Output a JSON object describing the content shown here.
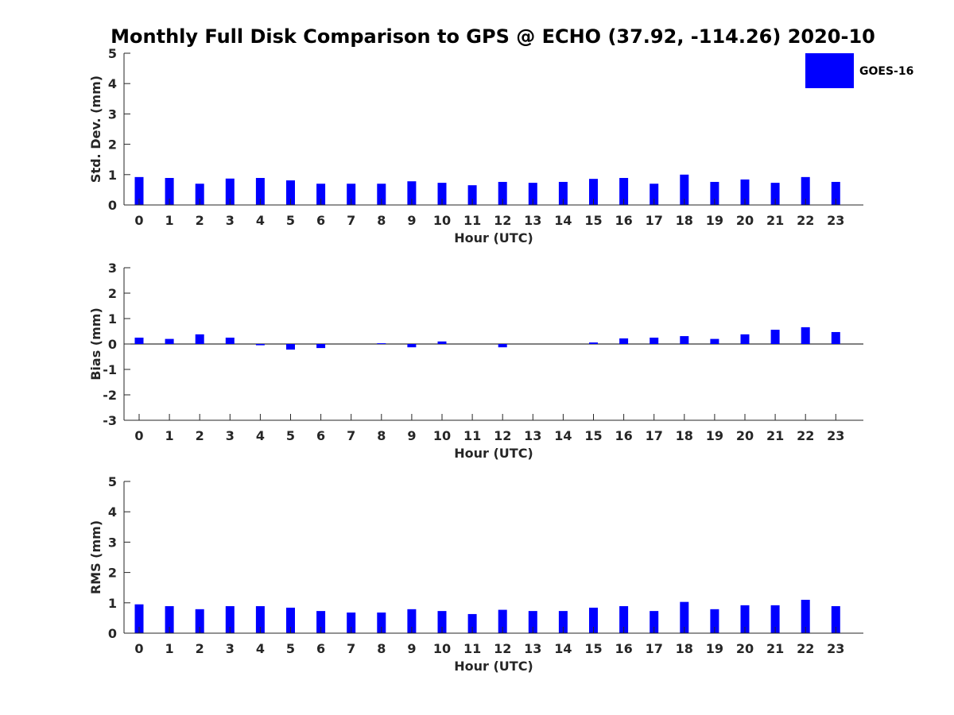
{
  "title": "Monthly Full Disk Comparison to GPS @ ECHO (37.92, -114.26) 2020-10",
  "legend": {
    "label": "GOES-16",
    "color": "#0000ff"
  },
  "chart_data": [
    {
      "type": "bar",
      "xlabel": "Hour (UTC)",
      "ylabel": "Std. Dev. (mm)",
      "ylim": [
        0,
        5
      ],
      "yticks": [
        0,
        1,
        2,
        3,
        4,
        5
      ],
      "categories": [
        "0",
        "1",
        "2",
        "3",
        "4",
        "5",
        "6",
        "7",
        "8",
        "9",
        "10",
        "11",
        "12",
        "13",
        "14",
        "15",
        "16",
        "17",
        "18",
        "19",
        "20",
        "21",
        "22",
        "23"
      ],
      "series": [
        {
          "name": "GOES-16",
          "color": "#0000ff",
          "values": [
            0.92,
            0.89,
            0.7,
            0.87,
            0.89,
            0.81,
            0.7,
            0.7,
            0.7,
            0.78,
            0.73,
            0.65,
            0.76,
            0.73,
            0.76,
            0.86,
            0.89,
            0.7,
            1.0,
            0.76,
            0.84,
            0.73,
            0.92,
            0.76
          ]
        }
      ],
      "grid": false
    },
    {
      "type": "bar",
      "xlabel": "Hour (UTC)",
      "ylabel": "Bias (mm)",
      "ylim": [
        -3,
        3
      ],
      "yticks": [
        -3,
        -2,
        -1,
        0,
        1,
        2,
        3
      ],
      "categories": [
        "0",
        "1",
        "2",
        "3",
        "4",
        "5",
        "6",
        "7",
        "8",
        "9",
        "10",
        "11",
        "12",
        "13",
        "14",
        "15",
        "16",
        "17",
        "18",
        "19",
        "20",
        "21",
        "22",
        "23"
      ],
      "series": [
        {
          "name": "GOES-16",
          "color": "#0000ff",
          "values": [
            0.25,
            0.2,
            0.38,
            0.25,
            -0.05,
            -0.22,
            -0.16,
            0.0,
            0.03,
            -0.13,
            0.1,
            0.0,
            -0.13,
            0.0,
            0.0,
            0.06,
            0.22,
            0.25,
            0.31,
            0.2,
            0.38,
            0.56,
            0.66,
            0.47
          ]
        }
      ],
      "grid": false
    },
    {
      "type": "bar",
      "xlabel": "Hour (UTC)",
      "ylabel": "RMS (mm)",
      "ylim": [
        0,
        5
      ],
      "yticks": [
        0,
        1,
        2,
        3,
        4,
        5
      ],
      "categories": [
        "0",
        "1",
        "2",
        "3",
        "4",
        "5",
        "6",
        "7",
        "8",
        "9",
        "10",
        "11",
        "12",
        "13",
        "14",
        "15",
        "16",
        "17",
        "18",
        "19",
        "20",
        "21",
        "22",
        "23"
      ],
      "series": [
        {
          "name": "GOES-16",
          "color": "#0000ff",
          "values": [
            0.95,
            0.89,
            0.79,
            0.89,
            0.89,
            0.84,
            0.73,
            0.68,
            0.68,
            0.79,
            0.73,
            0.63,
            0.77,
            0.73,
            0.73,
            0.84,
            0.89,
            0.73,
            1.03,
            0.79,
            0.92,
            0.92,
            1.1,
            0.89
          ]
        }
      ],
      "grid": false
    }
  ]
}
